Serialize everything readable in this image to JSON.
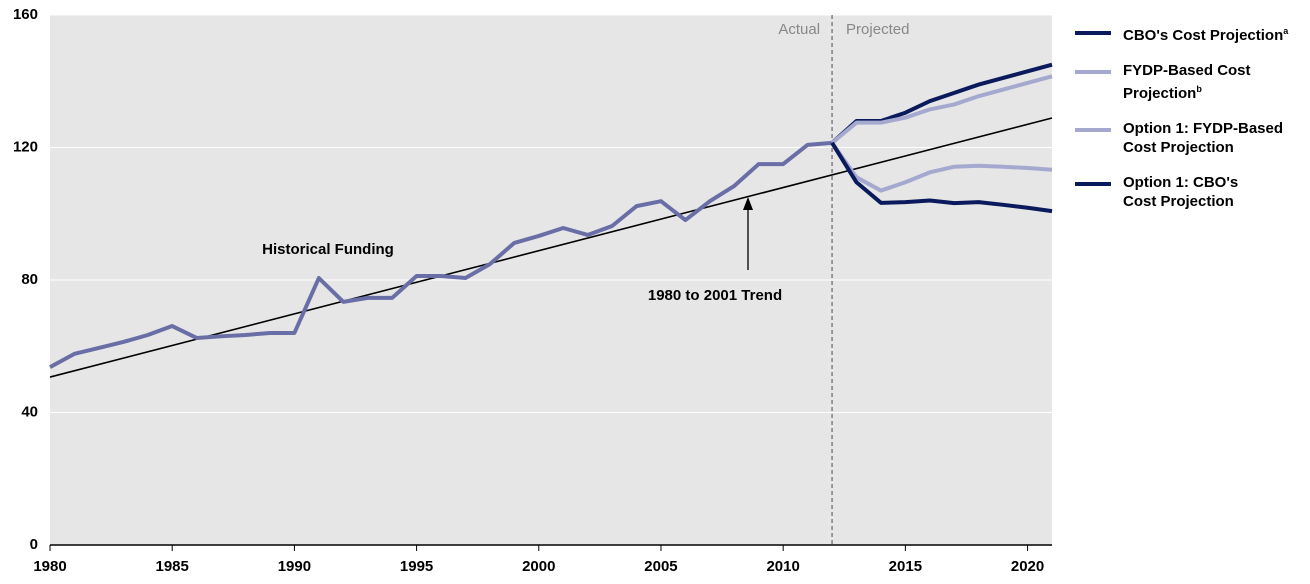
{
  "chart_data": {
    "type": "line",
    "xlim": [
      1980,
      2021
    ],
    "ylim": [
      0,
      160
    ],
    "xticks": [
      1980,
      1985,
      1990,
      1995,
      2000,
      2005,
      2010,
      2015,
      2020
    ],
    "yticks": [
      0,
      40,
      80,
      120,
      160
    ],
    "grid": true,
    "divider": {
      "x": 2012,
      "left_label": "Actual",
      "right_label": "Projected"
    },
    "historical": {
      "label": "Historical Funding",
      "color": "#6a6ea6",
      "x": [
        1980,
        1981,
        1982,
        1983,
        1984,
        1985,
        1986,
        1987,
        1988,
        1989,
        1990,
        1991,
        1992,
        1993,
        1994,
        1995,
        1996,
        1997,
        1998,
        1999,
        2000,
        2001,
        2002,
        2003,
        2004,
        2005,
        2006,
        2007,
        2008,
        2009,
        2010,
        2011,
        2012
      ],
      "values": [
        53.7,
        57.7,
        59.5,
        61.3,
        63.4,
        66.1,
        62.5,
        63,
        63.4,
        64,
        64,
        80.6,
        73.4,
        74.6,
        74.6,
        81.2,
        81.2,
        80.6,
        84.8,
        91.2,
        93.3,
        95.7,
        93.6,
        96.3,
        102.3,
        103.8,
        98.1,
        103.8,
        108.4,
        115,
        115,
        120.8,
        121.4
      ]
    },
    "trend": {
      "label": "1980 to 2001 Trend",
      "color": "#000000",
      "x": [
        1980,
        2021
      ],
      "values": [
        50.7,
        128.9
      ]
    },
    "legend": "right",
    "series": [
      {
        "name": "CBO's Cost Projection",
        "superscript": "a",
        "color": "#0a1a5c",
        "x": [
          2012,
          2013,
          2014,
          2015,
          2016,
          2017,
          2018,
          2019,
          2020,
          2021
        ],
        "values": [
          121.4,
          128,
          128,
          130.5,
          134,
          136.5,
          139,
          141,
          143,
          145
        ]
      },
      {
        "name": "FYDP-Based Cost Projection",
        "superscript": "b",
        "color": "#a6a9cf",
        "x": [
          2012,
          2013,
          2014,
          2015,
          2016,
          2017,
          2018,
          2019,
          2020,
          2021
        ],
        "values": [
          121.4,
          127.5,
          127.5,
          129,
          131.5,
          133,
          135.5,
          137.5,
          139.5,
          141.5
        ]
      },
      {
        "name": "Option 1: FYDP-Based Cost Projection",
        "color": "#a6a9cf",
        "x": [
          2012,
          2013,
          2014,
          2015,
          2016,
          2017,
          2018,
          2019,
          2020,
          2021
        ],
        "values": [
          121.4,
          111,
          107,
          109.5,
          112.5,
          114.2,
          114.5,
          114.2,
          113.8,
          113.3
        ]
      },
      {
        "name": "Option 1: CBO's Cost Projection",
        "color": "#0a1a5c",
        "x": [
          2012,
          2013,
          2014,
          2015,
          2016,
          2017,
          2018,
          2019,
          2020,
          2021
        ],
        "values": [
          121.4,
          109.5,
          103.3,
          103.5,
          104,
          103.2,
          103.5,
          102.7,
          101.8,
          100.8
        ]
      }
    ]
  }
}
